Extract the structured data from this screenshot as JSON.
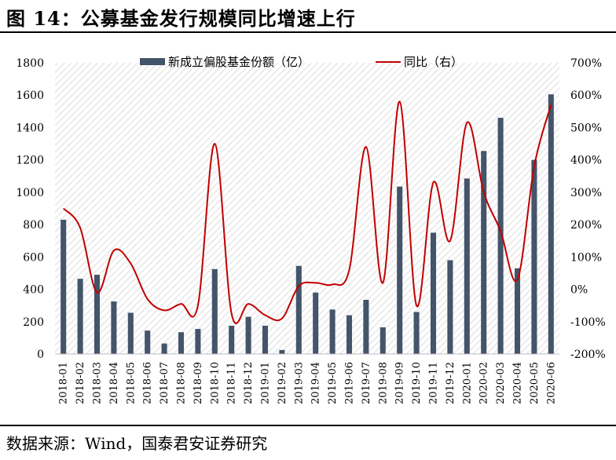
{
  "title": "图 14：公募基金发行规模同比增速上行",
  "source": "数据来源：Wind，国泰君安证券研究",
  "colors": {
    "bar": "#44546a",
    "line": "#c00000",
    "stripe": "#d9d9d9",
    "text": "#000000"
  },
  "chart_data": {
    "type": "bar",
    "categories": [
      "2018-01",
      "2018-02",
      "2018-03",
      "2018-04",
      "2018-05",
      "2018-06",
      "2018-07",
      "2018-08",
      "2018-09",
      "2018-10",
      "2018-11",
      "2018-12",
      "2019-01",
      "2019-02",
      "2019-03",
      "2019-04",
      "2019-05",
      "2019-06",
      "2019-07",
      "2019-08",
      "2019-09",
      "2019-10",
      "2019-11",
      "2019-12",
      "2020-01",
      "2020-02",
      "2020-03",
      "2020-04",
      "2020-05",
      "2020-06"
    ],
    "y_ticks_left": [
      "1800",
      "1600",
      "1400",
      "1200",
      "1000",
      "800",
      "600",
      "400",
      "200",
      "0"
    ],
    "y_ticks_right": [
      "700%",
      "600%",
      "500%",
      "400%",
      "300%",
      "200%",
      "100%",
      "0%",
      "-100%",
      "-200%"
    ],
    "ylim_left": [
      0,
      1800
    ],
    "ylim_right": [
      -200,
      700
    ],
    "legend_position": "top",
    "series": [
      {
        "name": "新成立偏股基金份额（亿）",
        "type": "bar",
        "axis": "left",
        "values": [
          830,
          465,
          490,
          325,
          255,
          145,
          65,
          135,
          155,
          525,
          175,
          230,
          175,
          25,
          545,
          380,
          275,
          240,
          335,
          165,
          1035,
          260,
          750,
          580,
          1085,
          1255,
          1460,
          530,
          1200,
          1605
        ]
      },
      {
        "name": "同比（右）",
        "type": "line",
        "axis": "right",
        "values": [
          250,
          190,
          -10,
          120,
          80,
          -30,
          -65,
          -45,
          -50,
          450,
          -75,
          -45,
          -80,
          -90,
          10,
          20,
          15,
          60,
          440,
          20,
          580,
          -50,
          330,
          150,
          515,
          300,
          180,
          30,
          380,
          570
        ]
      }
    ]
  }
}
